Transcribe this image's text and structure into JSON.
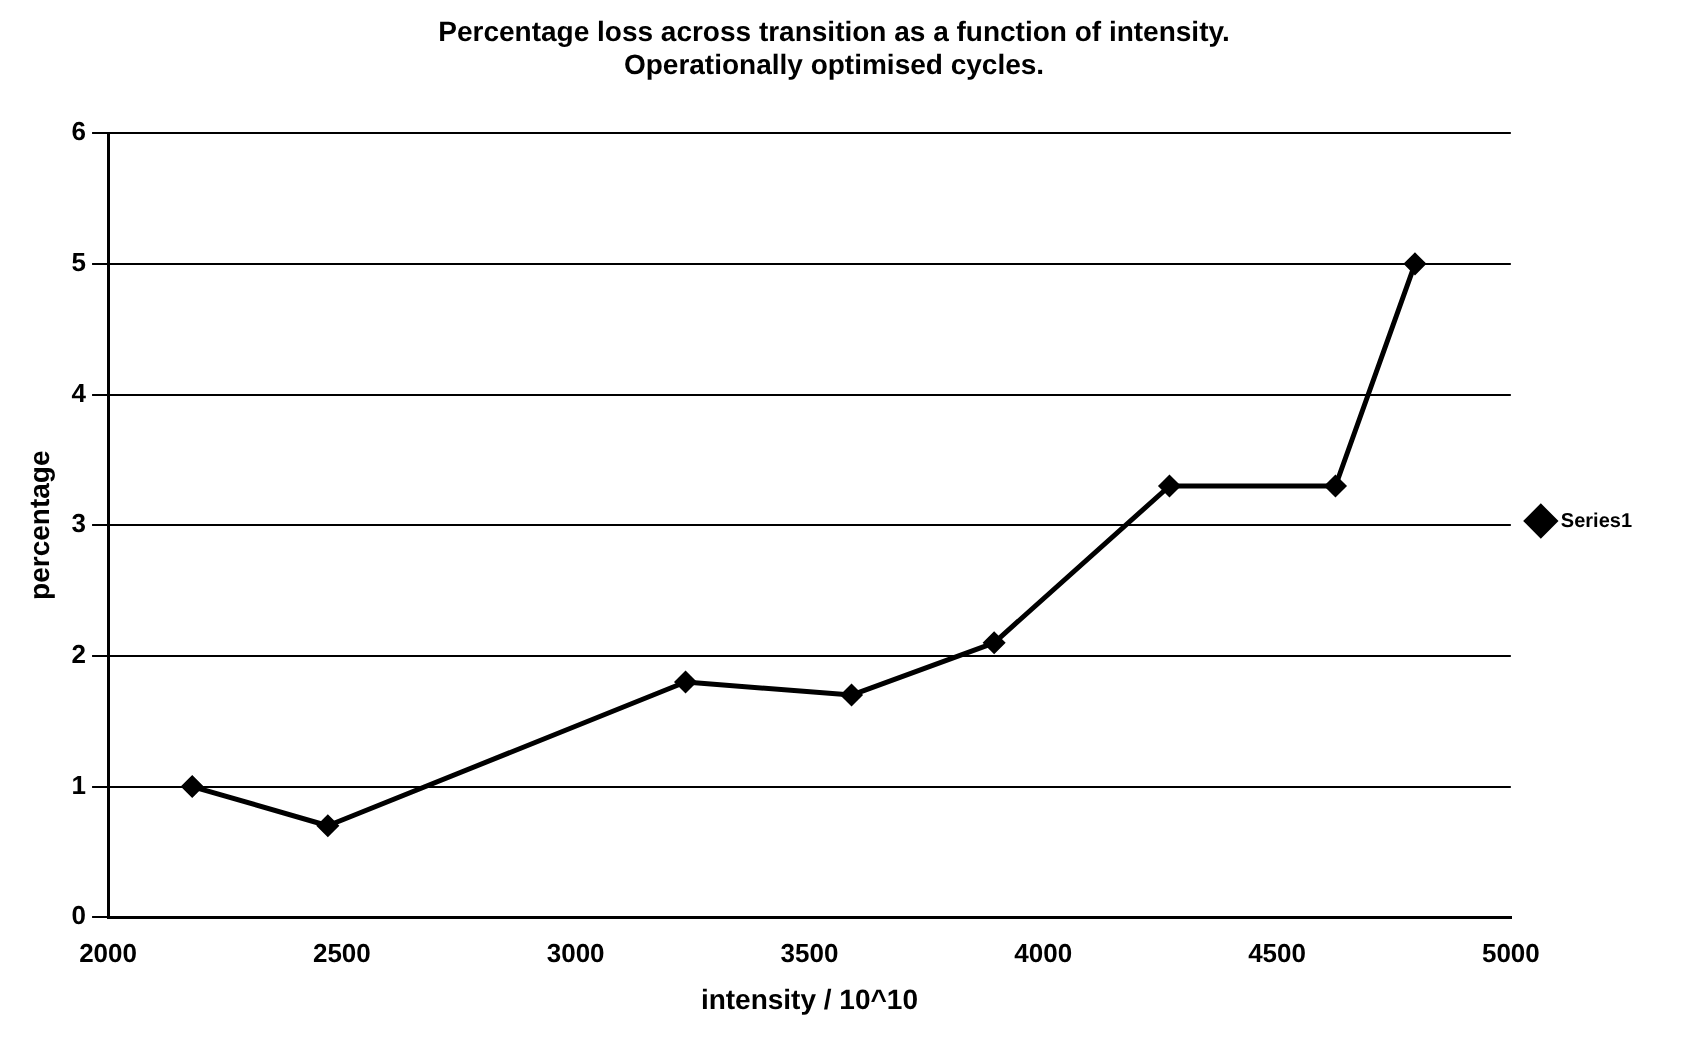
{
  "chart_data": {
    "type": "line",
    "title": [
      "Percentage loss across transition as a function of intensity.",
      "Operationally optimised cycles."
    ],
    "xlabel": "intensity / 10^10",
    "ylabel": "percentage",
    "series": [
      {
        "name": "Series1",
        "color": "#000000",
        "x": [
          2180,
          2470,
          3235,
          3590,
          3895,
          4270,
          4625,
          4795
        ],
        "values": [
          1.0,
          0.7,
          1.8,
          1.7,
          2.1,
          3.3,
          3.3,
          5.0
        ]
      }
    ],
    "xlim": [
      2000,
      5000
    ],
    "xticks": [
      2000,
      2500,
      3000,
      3500,
      4000,
      4500,
      5000
    ],
    "ylim": [
      0,
      6
    ],
    "yticks": [
      0,
      1,
      2,
      3,
      4,
      5,
      6
    ],
    "grid": "y",
    "legend": "right",
    "marker": "diamond",
    "line_style": "solid"
  }
}
